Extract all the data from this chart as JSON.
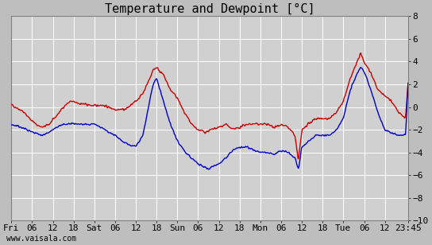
{
  "title": "Temperature and Dewpoint [°C]",
  "ylim": [
    -10,
    8
  ],
  "yticks": [
    -10,
    -8,
    -6,
    -4,
    -2,
    0,
    2,
    4,
    6,
    8
  ],
  "x_tick_labels": [
    "Fri",
    "06",
    "12",
    "18",
    "Sat",
    "06",
    "12",
    "18",
    "Sun",
    "06",
    "12",
    "18",
    "Mon",
    "06",
    "12",
    "18",
    "Tue",
    "06",
    "12",
    "23:45"
  ],
  "x_tick_positions": [
    0,
    6,
    12,
    18,
    24,
    30,
    36,
    42,
    48,
    54,
    60,
    66,
    72,
    78,
    84,
    90,
    96,
    102,
    108,
    114.75
  ],
  "watermark": "www.vaisala.com",
  "bg_color": "#bebebe",
  "plot_bg_color": "#d0d0d0",
  "grid_color": "#ffffff",
  "temp_color": "#cc0000",
  "dewp_color": "#0000cc",
  "title_fontsize": 11,
  "tick_fontsize": 8,
  "line_width": 1.0,
  "total_hours": 114.75
}
